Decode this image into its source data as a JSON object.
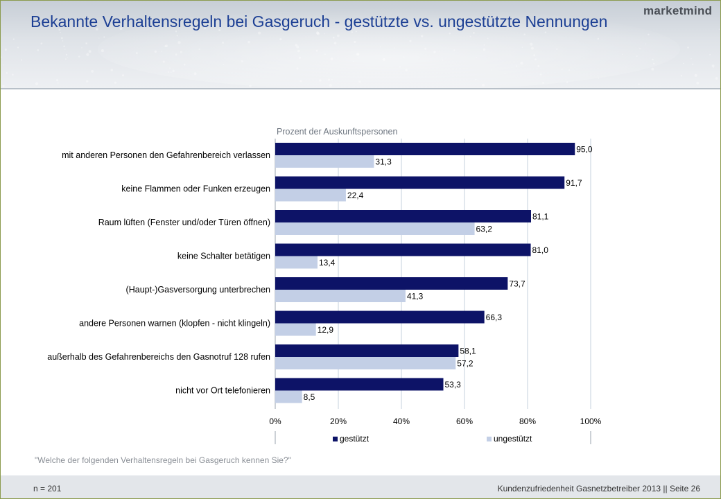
{
  "page": {
    "title": "Bekannte Verhaltensregeln bei Gasgeruch - gestützte vs. ungestützte Nennungen",
    "logo": "marketmind",
    "question": "\"Welche der folgenden Verhaltensregeln bei Gasgeruch kennen Sie?\"",
    "footer_left": "n = 201",
    "footer_right": "Kundenzufriedenheit Gasnetzbetreiber 2013 || Seite 26"
  },
  "colors": {
    "title": "#1c3f94",
    "gestuetzt": "#0d1367",
    "ungestuetzt": "#c3cfe6",
    "grid": "#c5d0dc"
  },
  "chart_data": {
    "type": "bar",
    "orientation": "horizontal",
    "title": "",
    "xlabel": "Prozent der Auskunftspersonen",
    "ylabel": "",
    "xlim": [
      0,
      100
    ],
    "ticks": [
      "0%",
      "20%",
      "40%",
      "60%",
      "80%",
      "100%"
    ],
    "tick_values": [
      0,
      20,
      40,
      60,
      80,
      100
    ],
    "grid": true,
    "legend_position": "bottom",
    "categories": [
      "mit anderen Personen den Gefahrenbereich verlassen",
      "keine Flammen oder Funken erzeugen",
      "Raum lüften (Fenster und/oder Türen öffnen)",
      "keine Schalter betätigen",
      "(Haupt-)Gasversorgung unterbrechen",
      "andere Personen warnen (klopfen - nicht klingeln)",
      "außerhalb des Gefahrenbereichs den Gasnotruf 128 rufen",
      "nicht vor Ort telefonieren"
    ],
    "series": [
      {
        "name": "gestützt",
        "values": [
          95.0,
          91.7,
          81.1,
          81.0,
          73.7,
          66.3,
          58.1,
          53.3
        ],
        "labels": [
          "95,0",
          "91,7",
          "81,1",
          "81,0",
          "73,7",
          "66,3",
          "58,1",
          "53,3"
        ]
      },
      {
        "name": "ungestützt",
        "values": [
          31.3,
          22.4,
          63.2,
          13.4,
          41.3,
          12.9,
          57.2,
          8.5
        ],
        "labels": [
          "31,3",
          "22,4",
          "63,2",
          "13,4",
          "41,3",
          "12,9",
          "57,2",
          "8,5"
        ]
      }
    ]
  }
}
